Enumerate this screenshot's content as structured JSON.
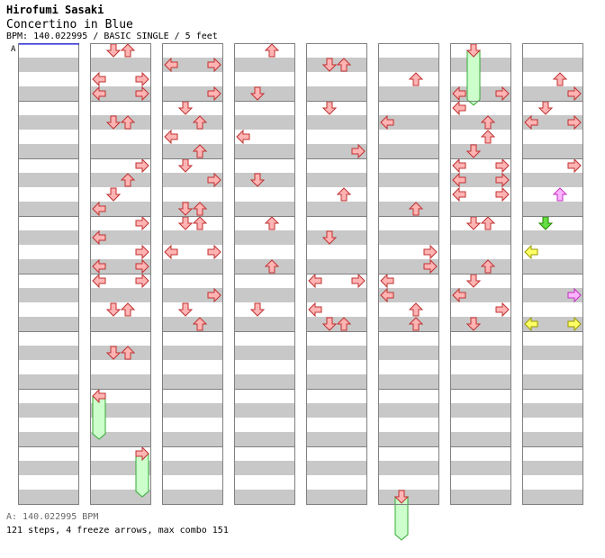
{
  "header": {
    "artist": "Hirofumi Sasaki",
    "title": "Concertino in Blue",
    "info": "BPM: 140.022995 / BASIC SINGLE / 5 feet"
  },
  "bpm_marker": "A",
  "footer": {
    "bpm_line": "A: 140.022995 BPM",
    "stats_line": "121 steps, 4 freeze arrows, max combo 151"
  },
  "colors": {
    "stripe": "#c8c8c8",
    "stripe_light": "#ffffff",
    "border": "#808080",
    "quarter": "#ffb4b4",
    "quarter_stroke": "#c03030",
    "eighth_yellow": "#ffff66",
    "eighth_yellow_stroke": "#999900",
    "eighth_green": "#66dd44",
    "eighth_green_stroke": "#228800",
    "sixteenth_pink": "#ffb4ff",
    "sixteenth_pink_stroke": "#c030c0",
    "freeze_fill": "#ccffcc",
    "freeze_stroke": "#33aa33",
    "marker": "#0000ff"
  },
  "chart_data": {
    "type": "step_chart",
    "lanes": [
      "left",
      "down",
      "up",
      "right"
    ],
    "notes": [
      {
        "c": 1,
        "b": 0,
        "d": "down"
      },
      {
        "c": 1,
        "b": 0,
        "d": "up"
      },
      {
        "c": 2,
        "b": 1,
        "d": "left"
      },
      {
        "c": 2,
        "b": 1,
        "d": "right"
      },
      {
        "c": 3,
        "b": 0,
        "d": "up"
      },
      {
        "c": 4,
        "b": 1,
        "d": "down"
      },
      {
        "c": 4,
        "b": 1,
        "d": "up"
      },
      {
        "c": 5,
        "b": 2,
        "d": "up"
      },
      {
        "c": 6,
        "b": 3,
        "d": "right"
      },
      {
        "c": 7,
        "b": 3,
        "d": "right"
      },
      {
        "c": 1,
        "b": 2,
        "d": "left"
      },
      {
        "c": 1,
        "b": 2,
        "d": "right"
      },
      {
        "c": 1,
        "b": 3,
        "d": "left"
      },
      {
        "c": 1,
        "b": 3,
        "d": "right"
      },
      {
        "c": 2,
        "b": 3,
        "d": "right"
      },
      {
        "c": 3,
        "b": 3,
        "d": "down"
      },
      {
        "c": 6,
        "b": 3,
        "d": "left"
      },
      {
        "c": 7,
        "b": 2,
        "d": "up"
      },
      {
        "c": 7,
        "b": 4,
        "d": "down"
      },
      {
        "c": 1,
        "b": 5,
        "d": "down"
      },
      {
        "c": 1,
        "b": 5,
        "d": "up"
      },
      {
        "c": 2,
        "b": 4,
        "d": "down"
      },
      {
        "c": 2,
        "b": 5,
        "d": "up"
      },
      {
        "c": 2,
        "b": 6,
        "d": "left"
      },
      {
        "c": 2,
        "b": 7,
        "d": "up"
      },
      {
        "c": 3,
        "b": 6,
        "d": "left"
      },
      {
        "c": 4,
        "b": 4,
        "d": "down"
      },
      {
        "c": 4,
        "b": 7,
        "d": "right"
      },
      {
        "c": 5,
        "b": 5,
        "d": "left"
      },
      {
        "c": 6,
        "b": 4,
        "d": "left"
      },
      {
        "c": 6,
        "b": 5,
        "d": "up"
      },
      {
        "c": 6,
        "b": 6,
        "d": "up"
      },
      {
        "c": 6,
        "b": 7,
        "d": "down"
      },
      {
        "c": 7,
        "b": 5,
        "d": "left"
      },
      {
        "c": 7,
        "b": 5,
        "d": "right"
      },
      {
        "c": 1,
        "b": 8,
        "d": "right"
      },
      {
        "c": 1,
        "b": 9,
        "d": "up"
      },
      {
        "c": 1,
        "b": 10,
        "d": "down"
      },
      {
        "c": 1,
        "b": 11,
        "d": "left"
      },
      {
        "c": 2,
        "b": 8,
        "d": "down"
      },
      {
        "c": 2,
        "b": 9,
        "d": "right"
      },
      {
        "c": 2,
        "b": 11,
        "d": "down"
      },
      {
        "c": 2,
        "b": 11,
        "d": "up"
      },
      {
        "c": 3,
        "b": 9,
        "d": "down"
      },
      {
        "c": 4,
        "b": 10,
        "d": "up"
      },
      {
        "c": 5,
        "b": 11,
        "d": "up"
      },
      {
        "c": 6,
        "b": 8,
        "d": "left"
      },
      {
        "c": 6,
        "b": 8,
        "d": "right"
      },
      {
        "c": 6,
        "b": 9,
        "d": "left"
      },
      {
        "c": 6,
        "b": 9,
        "d": "right"
      },
      {
        "c": 6,
        "b": 10,
        "d": "left"
      },
      {
        "c": 6,
        "b": 10,
        "d": "right"
      },
      {
        "c": 7,
        "b": 8,
        "d": "right"
      },
      {
        "c": 7,
        "b": 10,
        "d": "up",
        "k": "pink"
      },
      {
        "c": 7,
        "b": 12,
        "d": "down",
        "k": "green"
      },
      {
        "c": 1,
        "b": 12,
        "d": "right"
      },
      {
        "c": 1,
        "b": 13,
        "d": "left"
      },
      {
        "c": 1,
        "b": 14,
        "d": "right"
      },
      {
        "c": 1,
        "b": 15,
        "d": "left"
      },
      {
        "c": 1,
        "b": 15,
        "d": "right"
      },
      {
        "c": 2,
        "b": 12,
        "d": "down"
      },
      {
        "c": 2,
        "b": 12,
        "d": "up"
      },
      {
        "c": 2,
        "b": 14,
        "d": "left"
      },
      {
        "c": 2,
        "b": 14,
        "d": "right"
      },
      {
        "c": 3,
        "b": 12,
        "d": "up"
      },
      {
        "c": 3,
        "b": 15,
        "d": "up"
      },
      {
        "c": 4,
        "b": 13,
        "d": "down"
      },
      {
        "c": 5,
        "b": 14,
        "d": "right"
      },
      {
        "c": 5,
        "b": 15,
        "d": "right"
      },
      {
        "c": 6,
        "b": 12,
        "d": "down"
      },
      {
        "c": 6,
        "b": 12,
        "d": "up"
      },
      {
        "c": 6,
        "b": 15,
        "d": "up"
      },
      {
        "c": 7,
        "b": 14,
        "d": "left",
        "k": "yellow"
      },
      {
        "c": 1,
        "b": 16,
        "d": "left"
      },
      {
        "c": 1,
        "b": 16,
        "d": "right"
      },
      {
        "c": 1,
        "b": 18,
        "d": "down"
      },
      {
        "c": 1,
        "b": 18,
        "d": "up"
      },
      {
        "c": 2,
        "b": 17,
        "d": "right"
      },
      {
        "c": 2,
        "b": 18,
        "d": "down"
      },
      {
        "c": 2,
        "b": 19,
        "d": "up"
      },
      {
        "c": 3,
        "b": 18,
        "d": "down"
      },
      {
        "c": 4,
        "b": 16,
        "d": "left"
      },
      {
        "c": 4,
        "b": 16,
        "d": "right"
      },
      {
        "c": 4,
        "b": 18,
        "d": "left"
      },
      {
        "c": 4,
        "b": 19,
        "d": "down"
      },
      {
        "c": 4,
        "b": 19,
        "d": "up"
      },
      {
        "c": 5,
        "b": 16,
        "d": "left"
      },
      {
        "c": 5,
        "b": 17,
        "d": "left"
      },
      {
        "c": 5,
        "b": 18,
        "d": "up"
      },
      {
        "c": 5,
        "b": 19,
        "d": "up"
      },
      {
        "c": 6,
        "b": 16,
        "d": "down"
      },
      {
        "c": 6,
        "b": 17,
        "d": "left"
      },
      {
        "c": 6,
        "b": 18,
        "d": "right"
      },
      {
        "c": 6,
        "b": 19,
        "d": "down"
      },
      {
        "c": 7,
        "b": 17,
        "d": "right",
        "k": "pink"
      },
      {
        "c": 7,
        "b": 19,
        "d": "left",
        "k": "yellow"
      },
      {
        "c": 7,
        "b": 19,
        "d": "right",
        "k": "yellow"
      },
      {
        "c": 1,
        "b": 21,
        "d": "down"
      },
      {
        "c": 1,
        "b": 21,
        "d": "up"
      }
    ],
    "freezes": [
      {
        "c": 1,
        "lane": 0,
        "b0": 24,
        "b1": 27
      },
      {
        "c": 1,
        "lane": 3,
        "b0": 28,
        "b1": 31
      },
      {
        "c": 5,
        "lane": 1,
        "b0": 31,
        "b1": 34
      },
      {
        "c": 6,
        "lane": 1,
        "b0": 32,
        "b1": 35.8
      }
    ]
  }
}
